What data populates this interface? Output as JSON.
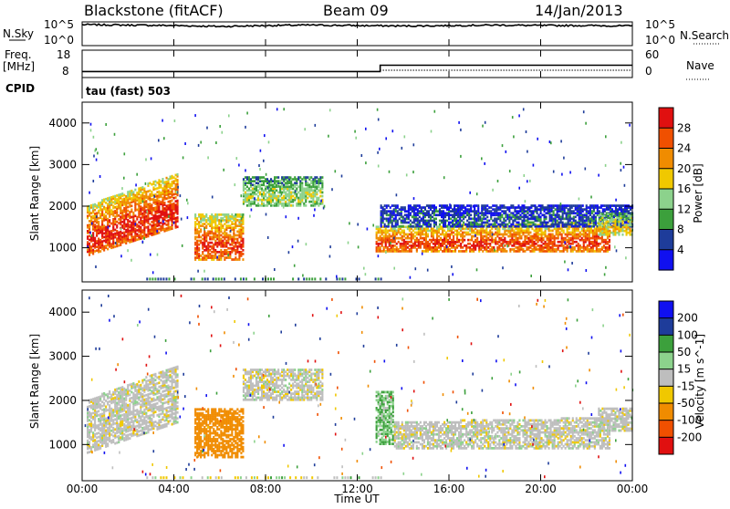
{
  "header": {
    "station": "Blackstone (fitACF)",
    "beam": "Beam 09",
    "date": "14/Jan/2013"
  },
  "top_panels": {
    "nsky_label": "N.Sky",
    "nsearch_label": "N.Search",
    "nsky_ticks": [
      "10^5",
      "10^0"
    ],
    "nsearch_ticks": [
      "10^5",
      "10^0"
    ],
    "freq_label": "Freq.",
    "freq_unit": "[MHz]",
    "freq_ticks": [
      "18",
      "8"
    ],
    "nave_label": "Nave",
    "nave_ticks": [
      "60",
      "0"
    ],
    "cpid_label": "CPID",
    "cpid_text": "tau (fast) 503"
  },
  "colors": {
    "power_scale": [
      "#1010f0",
      "#1e3c9a",
      "#3ca03c",
      "#8cd28c",
      "#f0c800",
      "#f08c00",
      "#f05000",
      "#e01010"
    ],
    "velocity_scale": [
      "#1010f0",
      "#1e3c9a",
      "#3ca03c",
      "#8cd28c",
      "#bebebe",
      "#f0c800",
      "#f08c00",
      "#f05000",
      "#e01010"
    ]
  },
  "chart_data": [
    {
      "type": "line",
      "name": "N.Sky / N.Search noise",
      "x": [
        0,
        2,
        4,
        6,
        8,
        10,
        12,
        14,
        16,
        18,
        20,
        22,
        24
      ],
      "y_log10": [
        4.6,
        4.5,
        4.4,
        4.2,
        4.4,
        4.5,
        4.4,
        4.3,
        4.4,
        4.5,
        4.4,
        4.4,
        4.3
      ],
      "xlim": [
        0,
        24
      ]
    },
    {
      "type": "line",
      "name": "Frequency / Nave",
      "freq_x": [
        0,
        13,
        13,
        24
      ],
      "freq_y": [
        10.2,
        10.2,
        12.5,
        12.5
      ],
      "nave_x": [
        13,
        24
      ],
      "nave_y": [
        16,
        16
      ],
      "ylim_freq": [
        8,
        18
      ],
      "ylim_nave": [
        0,
        60
      ]
    },
    {
      "type": "heatmap",
      "variable": "power",
      "xlabel": "",
      "ylabel": "Slant Range [km]",
      "colorbar_label": "Power [dB]",
      "colorbar_ticks": [
        "4",
        "8",
        "12",
        "16",
        "20",
        "24",
        "28"
      ],
      "x_ticks": [
        "00:00",
        "04:00",
        "08:00",
        "12:00",
        "16:00",
        "20:00",
        "00:00"
      ],
      "y_ticks": [
        "1000",
        "2000",
        "3000",
        "4000"
      ],
      "xlim": [
        0,
        24
      ],
      "ylim": [
        180,
        4500
      ],
      "regions": [
        {
          "t0": 0.2,
          "t1": 4.2,
          "r0": 800,
          "r1": 1500,
          "r2": 2000,
          "r3": 2800,
          "level": 28
        },
        {
          "t0": 4.9,
          "t1": 7.0,
          "r0": 700,
          "r1": 700,
          "r2": 1800,
          "r3": 1800,
          "level": 26
        },
        {
          "t0": 7.0,
          "t1": 10.5,
          "r0": 2000,
          "r1": 2000,
          "r2": 2700,
          "r3": 2700,
          "level": 14
        },
        {
          "t0": 12.8,
          "t1": 23.0,
          "r0": 900,
          "r1": 900,
          "r2": 1500,
          "r3": 1600,
          "level": 26
        },
        {
          "t0": 13.0,
          "t1": 24.0,
          "r0": 1500,
          "r1": 1500,
          "r2": 2000,
          "r3": 2000,
          "level": 6
        },
        {
          "t0": 22.5,
          "t1": 24.0,
          "r0": 1300,
          "r1": 1300,
          "r2": 1800,
          "r3": 1800,
          "level": 18
        }
      ]
    },
    {
      "type": "heatmap",
      "variable": "velocity",
      "xlabel": "Time UT",
      "ylabel": "Slant Range [km]",
      "colorbar_label": "Velocity [m s^-1]",
      "colorbar_ticks": [
        "200",
        "100",
        "50",
        "15",
        "-15",
        "-50",
        "-100",
        "-200"
      ],
      "x_ticks": [
        "00:00",
        "04:00",
        "08:00",
        "12:00",
        "16:00",
        "20:00",
        "00:00"
      ],
      "y_ticks": [
        "1000",
        "2000",
        "3000",
        "4000"
      ],
      "xlim": [
        0,
        24
      ],
      "ylim": [
        180,
        4500
      ],
      "regions": [
        {
          "t0": 0.2,
          "t1": 4.2,
          "r0": 800,
          "r1": 1500,
          "r2": 2000,
          "r3": 2800,
          "level": 0
        },
        {
          "t0": 4.9,
          "t1": 7.0,
          "r0": 700,
          "r1": 700,
          "r2": 1800,
          "r3": 1800,
          "level": -70
        },
        {
          "t0": 7.0,
          "t1": 10.5,
          "r0": 2000,
          "r1": 2000,
          "r2": 2700,
          "r3": 2700,
          "level": 0
        },
        {
          "t0": 12.8,
          "t1": 13.6,
          "r0": 1000,
          "r1": 1000,
          "r2": 2200,
          "r3": 2200,
          "level": 30
        },
        {
          "t0": 13.6,
          "t1": 23.0,
          "r0": 900,
          "r1": 900,
          "r2": 1500,
          "r3": 1600,
          "level": 0
        },
        {
          "t0": 22.5,
          "t1": 24.0,
          "r0": 1300,
          "r1": 1300,
          "r2": 1800,
          "r3": 1800,
          "level": 0
        }
      ]
    }
  ]
}
